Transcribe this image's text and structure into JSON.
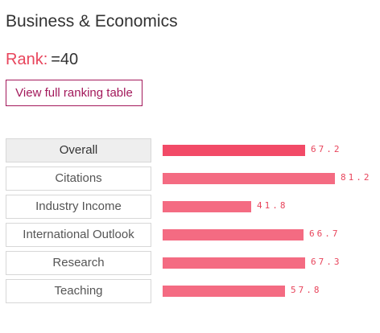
{
  "subject": {
    "title": "Business & Economics"
  },
  "rank": {
    "label": "Rank:",
    "value": "=40"
  },
  "ranking_button": {
    "label": "View full ranking table"
  },
  "metrics": [
    {
      "name": "Overall",
      "score": "67.2",
      "value": 67.2,
      "selected": true
    },
    {
      "name": "Citations",
      "score": "81.2",
      "value": 81.2,
      "selected": false
    },
    {
      "name": "Industry Income",
      "score": "41.8",
      "value": 41.8,
      "selected": false
    },
    {
      "name": "International Outlook",
      "score": "66.7",
      "value": 66.7,
      "selected": false
    },
    {
      "name": "Research",
      "score": "67.3",
      "value": 67.3,
      "selected": false
    },
    {
      "name": "Teaching",
      "score": "57.8",
      "value": 57.8,
      "selected": false
    }
  ],
  "colors": {
    "accent": "#e8455c",
    "bar": "#f46b82",
    "bar_selected": "#f24a67",
    "button_border": "#a3195b"
  }
}
